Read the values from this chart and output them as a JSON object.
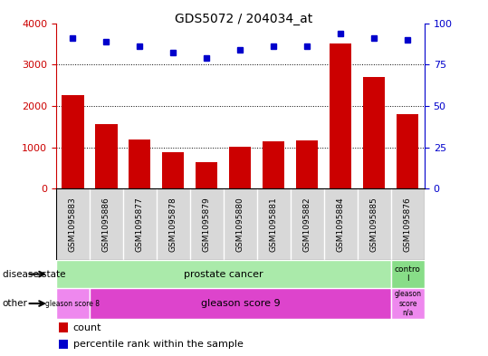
{
  "title": "GDS5072 / 204034_at",
  "samples": [
    "GSM1095883",
    "GSM1095886",
    "GSM1095877",
    "GSM1095878",
    "GSM1095879",
    "GSM1095880",
    "GSM1095881",
    "GSM1095882",
    "GSM1095884",
    "GSM1095885",
    "GSM1095876"
  ],
  "counts": [
    2250,
    1550,
    1180,
    880,
    650,
    1020,
    1150,
    1170,
    3500,
    2700,
    1800
  ],
  "percentile_ranks": [
    91,
    89,
    86,
    82,
    79,
    84,
    86,
    86,
    94,
    91,
    90
  ],
  "ylim_left": [
    0,
    4000
  ],
  "ylim_right": [
    0,
    100
  ],
  "yticks_left": [
    0,
    1000,
    2000,
    3000,
    4000
  ],
  "yticks_right": [
    0,
    25,
    50,
    75,
    100
  ],
  "bar_color": "#cc0000",
  "dot_color": "#0000cc",
  "background_color": "#ffffff",
  "plot_bg_color": "#ffffff",
  "grid_color": "#000000",
  "tick_label_color_left": "#cc0000",
  "tick_label_color_right": "#0000cc",
  "label_box_color": "#d8d8d8",
  "disease_state_prostate_color": "#aaeaaa",
  "disease_state_control_color": "#88dd88",
  "gleason8_color": "#ee88ee",
  "gleason9_color": "#dd44cc",
  "gleason_na_color": "#ee88ee",
  "gleason8_count": 1,
  "gleason9_count": 9,
  "gleason_na_count": 1,
  "prostate_count": 10
}
